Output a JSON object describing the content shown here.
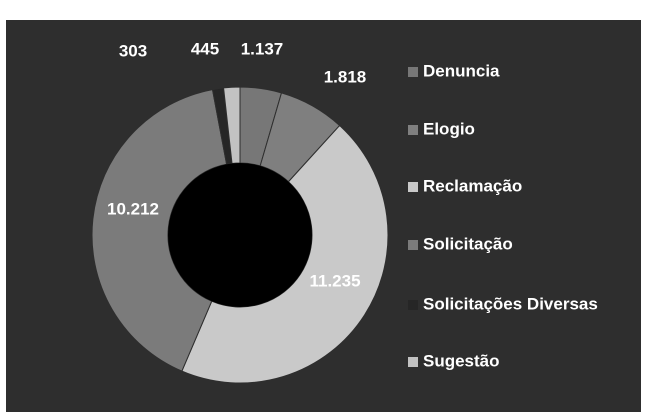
{
  "chart_data": {
    "type": "donut",
    "categories": [
      "Denuncia",
      "Elogio",
      "Reclamação",
      "Solicitação",
      "Solicitações  Diversas",
      "Sugestão"
    ],
    "values": [
      1137,
      1818,
      11235,
      10212,
      303,
      445
    ],
    "value_labels": [
      "1.137",
      "1.818",
      "11.235",
      "10.212",
      "303",
      "445"
    ],
    "colors": [
      "#777777",
      "#7f7f7f",
      "#c9c9c9",
      "#7b7b7b",
      "#262626",
      "#c2c2c2"
    ],
    "legend": "right"
  }
}
